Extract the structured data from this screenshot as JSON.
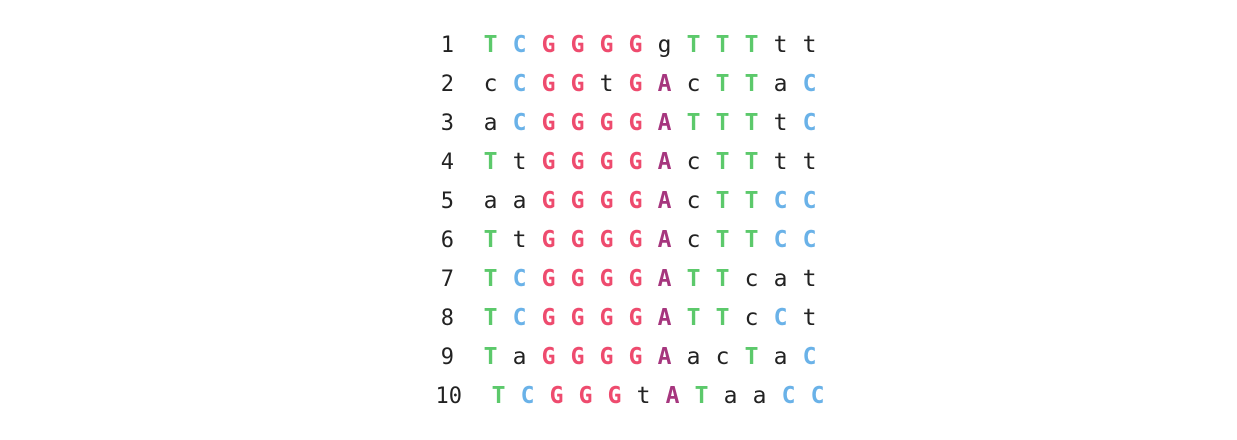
{
  "rows": [
    {
      "number": "1",
      "bases": [
        "T",
        "C",
        "G",
        "G",
        "G",
        "G",
        "g",
        "T",
        "T",
        "T",
        "t",
        "t"
      ]
    },
    {
      "number": "2",
      "bases": [
        "c",
        "C",
        "G",
        "G",
        "t",
        "G",
        "A",
        "c",
        "T",
        "T",
        "a",
        "C"
      ]
    },
    {
      "number": "3",
      "bases": [
        "a",
        "C",
        "G",
        "G",
        "G",
        "G",
        "A",
        "T",
        "T",
        "T",
        "t",
        "C"
      ]
    },
    {
      "number": "4",
      "bases": [
        "T",
        "t",
        "G",
        "G",
        "G",
        "G",
        "A",
        "c",
        "T",
        "T",
        "t",
        "t"
      ]
    },
    {
      "number": "5",
      "bases": [
        "a",
        "a",
        "G",
        "G",
        "G",
        "G",
        "A",
        "c",
        "T",
        "T",
        "C",
        "C"
      ]
    },
    {
      "number": "6",
      "bases": [
        "T",
        "t",
        "G",
        "G",
        "G",
        "G",
        "A",
        "c",
        "T",
        "T",
        "C",
        "C"
      ]
    },
    {
      "number": "7",
      "bases": [
        "T",
        "C",
        "G",
        "G",
        "G",
        "G",
        "A",
        "T",
        "T",
        "c",
        "a",
        "t"
      ]
    },
    {
      "number": "8",
      "bases": [
        "T",
        "C",
        "G",
        "G",
        "G",
        "G",
        "A",
        "T",
        "T",
        "c",
        "C",
        "t"
      ]
    },
    {
      "number": "9",
      "bases": [
        "T",
        "a",
        "G",
        "G",
        "G",
        "G",
        "A",
        "a",
        "c",
        "T",
        "a",
        "C"
      ]
    },
    {
      "number": "10",
      "bases": [
        "T",
        "C",
        "G",
        "G",
        "G",
        "t",
        "A",
        "T",
        "a",
        "a",
        "C",
        "C"
      ]
    }
  ],
  "colors": {
    "T": "#5cc96b",
    "C": "#6ab2e8",
    "G": "#ee4b6e",
    "A": "#a6367e",
    "lower": "#222222"
  }
}
